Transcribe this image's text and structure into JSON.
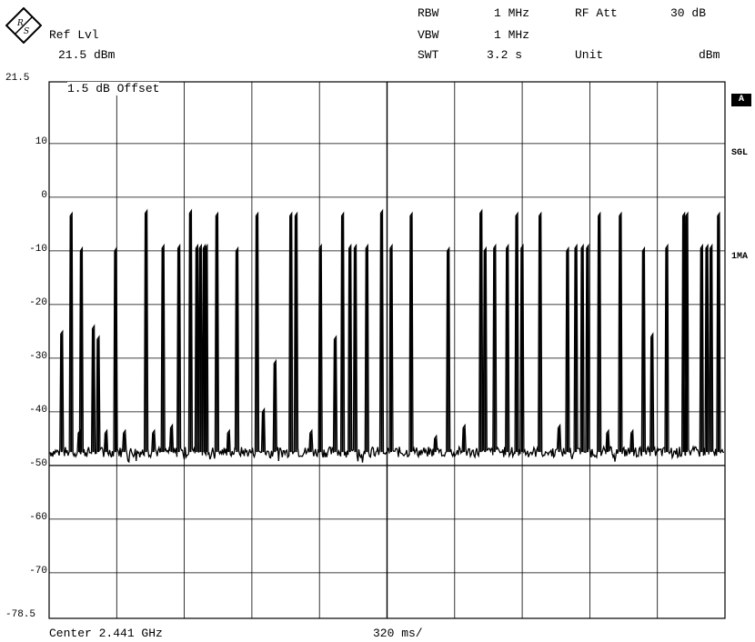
{
  "header": {
    "ref_lvl_label": "Ref Lvl",
    "ref_lvl_value": "21.5 dBm",
    "rbw_label": "RBW",
    "rbw_value": "1 MHz",
    "vbw_label": "VBW",
    "vbw_value": "1 MHz",
    "swt_label": "SWT",
    "swt_value": "3.2 s",
    "rf_att_label": "RF Att",
    "rf_att_value": "30 dB",
    "unit_label": "Unit",
    "unit_value": "dBm"
  },
  "annotations": {
    "offset": "1.5 dB Offset"
  },
  "side_labels": {
    "trace": "A",
    "sweep_mode": "SGL",
    "detector": "1MA"
  },
  "footer": {
    "center": "Center 2.441 GHz",
    "time_per_div": "320 ms/"
  },
  "logo": {
    "icon": "rohde-schwarz-logo-icon"
  },
  "chart_data": {
    "type": "line",
    "title": "",
    "xlabel": "",
    "ylabel": "",
    "xlim": [
      0,
      3.2
    ],
    "x_unit": "s",
    "ylim": [
      -78.5,
      21.5
    ],
    "y_ticks": [
      "21.5",
      "10",
      "0",
      "-10",
      "-20",
      "-30",
      "-40",
      "-50",
      "-60",
      "-70",
      "-78.5"
    ],
    "y_tick_values": [
      21.5,
      10,
      0,
      -10,
      -20,
      -30,
      -40,
      -50,
      -60,
      -70,
      -78.5
    ],
    "grid": true,
    "noise_floor_dbm": -47.5,
    "series": [
      {
        "bursts": [
          {
            "t": 0.055,
            "peak": -25.5
          },
          {
            "t": 0.1,
            "peak": -3.5
          },
          {
            "t": 0.138,
            "peak": -44.0
          },
          {
            "t": 0.148,
            "peak": -10.0
          },
          {
            "t": 0.205,
            "peak": -24.5
          },
          {
            "t": 0.228,
            "peak": -26.5
          },
          {
            "t": 0.265,
            "peak": -44.0
          },
          {
            "t": 0.31,
            "peak": -10.0
          },
          {
            "t": 0.352,
            "peak": -44.0
          },
          {
            "t": 0.455,
            "peak": -3.0
          },
          {
            "t": 0.49,
            "peak": -44.0
          },
          {
            "t": 0.535,
            "peak": -9.5
          },
          {
            "t": 0.575,
            "peak": -43.0
          },
          {
            "t": 0.61,
            "peak": -9.5
          },
          {
            "t": 0.665,
            "peak": -3.0
          },
          {
            "t": 0.695,
            "peak": -9.5
          },
          {
            "t": 0.712,
            "peak": -9.5
          },
          {
            "t": 0.73,
            "peak": -9.5
          },
          {
            "t": 0.74,
            "peak": -9.5
          },
          {
            "t": 0.79,
            "peak": -3.5
          },
          {
            "t": 0.845,
            "peak": -44.0
          },
          {
            "t": 0.885,
            "peak": -10.0
          },
          {
            "t": 0.98,
            "peak": -3.5
          },
          {
            "t": 1.01,
            "peak": -40.0
          },
          {
            "t": 1.065,
            "peak": -31.0
          },
          {
            "t": 1.14,
            "peak": -3.5
          },
          {
            "t": 1.165,
            "peak": -3.5
          },
          {
            "t": 1.235,
            "peak": -44.0
          },
          {
            "t": 1.28,
            "peak": -9.5
          },
          {
            "t": 1.35,
            "peak": -26.5
          },
          {
            "t": 1.385,
            "peak": -3.5
          },
          {
            "t": 1.42,
            "peak": -9.5
          },
          {
            "t": 1.445,
            "peak": -9.5
          },
          {
            "t": 1.5,
            "peak": -9.5
          },
          {
            "t": 1.57,
            "peak": -3.0
          },
          {
            "t": 1.615,
            "peak": -9.5
          },
          {
            "t": 1.71,
            "peak": -3.5
          },
          {
            "t": 1.825,
            "peak": -45.0
          },
          {
            "t": 1.885,
            "peak": -10.0
          },
          {
            "t": 1.96,
            "peak": -43.0
          },
          {
            "t": 2.04,
            "peak": -3.0
          },
          {
            "t": 2.06,
            "peak": -10.0
          },
          {
            "t": 2.105,
            "peak": -9.5
          },
          {
            "t": 2.165,
            "peak": -9.5
          },
          {
            "t": 2.21,
            "peak": -3.5
          },
          {
            "t": 2.235,
            "peak": -9.5
          },
          {
            "t": 2.32,
            "peak": -3.5
          },
          {
            "t": 2.41,
            "peak": -43.0
          },
          {
            "t": 2.45,
            "peak": -10.0
          },
          {
            "t": 2.49,
            "peak": -9.5
          },
          {
            "t": 2.52,
            "peak": -9.5
          },
          {
            "t": 2.545,
            "peak": -9.5
          },
          {
            "t": 2.6,
            "peak": -3.5
          },
          {
            "t": 2.64,
            "peak": -44.0
          },
          {
            "t": 2.7,
            "peak": -3.5
          },
          {
            "t": 2.755,
            "peak": -44.0
          },
          {
            "t": 2.81,
            "peak": -10.0
          },
          {
            "t": 2.85,
            "peak": -26.0
          },
          {
            "t": 2.92,
            "peak": -9.5
          },
          {
            "t": 3.0,
            "peak": -3.5
          },
          {
            "t": 3.015,
            "peak": -3.5
          },
          {
            "t": 3.085,
            "peak": -9.5
          },
          {
            "t": 3.11,
            "peak": -9.5
          },
          {
            "t": 3.13,
            "peak": -9.5
          },
          {
            "t": 3.165,
            "peak": -3.5
          }
        ]
      }
    ]
  }
}
